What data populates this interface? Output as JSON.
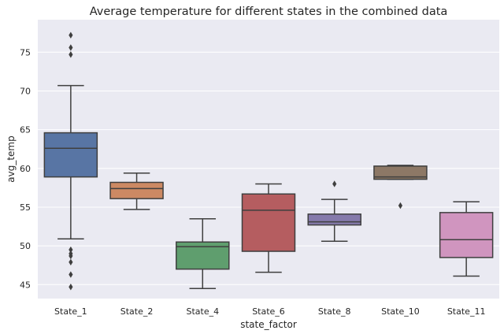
{
  "chart_data": {
    "type": "box",
    "title": "Average temperature for different states in the combined data",
    "xlabel": "state_factor",
    "ylabel": "avg_temp",
    "ylim": [
      43.2,
      79.2
    ],
    "yticks": [
      45,
      50,
      55,
      60,
      65,
      70,
      75
    ],
    "grid": true,
    "categories": [
      "State_1",
      "State_2",
      "State_4",
      "State_6",
      "State_8",
      "State_10",
      "State_11"
    ],
    "boxes": [
      {
        "category": "State_1",
        "color": "#5875a4",
        "whisker_low": 50.9,
        "q1": 58.9,
        "median": 62.6,
        "q3": 64.6,
        "whisker_high": 70.7,
        "outliers": [
          77.2,
          75.6,
          74.7,
          49.5,
          49.0,
          48.7,
          47.9,
          46.3,
          44.7
        ]
      },
      {
        "category": "State_2",
        "color": "#cc8963",
        "whisker_low": 54.7,
        "q1": 56.1,
        "median": 57.4,
        "q3": 58.2,
        "whisker_high": 59.4,
        "outliers": []
      },
      {
        "category": "State_4",
        "color": "#5f9e6e",
        "whisker_low": 44.5,
        "q1": 47.0,
        "median": 49.9,
        "q3": 50.5,
        "whisker_high": 53.5,
        "outliers": []
      },
      {
        "category": "State_6",
        "color": "#b55d60",
        "whisker_low": 46.6,
        "q1": 49.3,
        "median": 54.6,
        "q3": 56.7,
        "whisker_high": 58.0,
        "outliers": []
      },
      {
        "category": "State_8",
        "color": "#857aab",
        "whisker_low": 50.6,
        "q1": 52.7,
        "median": 53.1,
        "q3": 54.1,
        "whisker_high": 56.0,
        "outliers": [
          58.0
        ]
      },
      {
        "category": "State_10",
        "color": "#8d7866",
        "whisker_low": 58.6,
        "q1": 58.6,
        "median": 58.9,
        "q3": 60.3,
        "whisker_high": 60.4,
        "outliers": [
          55.2
        ]
      },
      {
        "category": "State_11",
        "color": "#d095bf",
        "whisker_low": 46.1,
        "q1": 48.5,
        "median": 50.8,
        "q3": 54.3,
        "whisker_high": 55.7,
        "outliers": []
      }
    ]
  }
}
